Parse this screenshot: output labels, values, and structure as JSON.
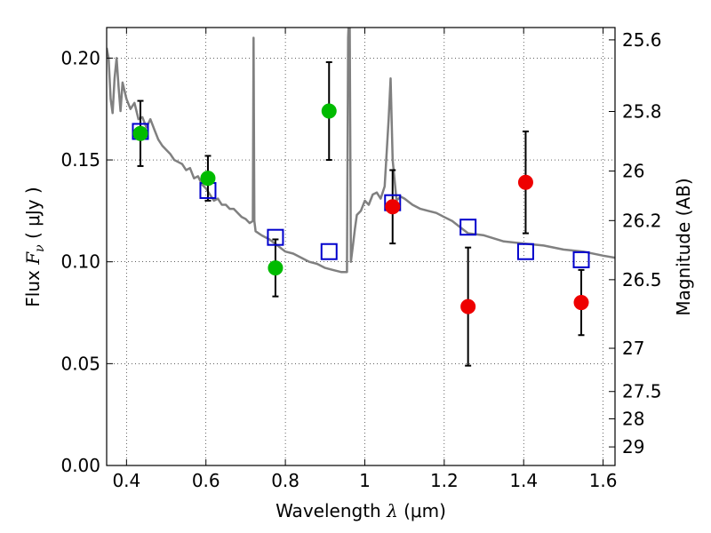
{
  "chart_data": {
    "type": "scatter",
    "title": "",
    "xlabel": "Wavelength  λ (μm)",
    "ylabel": "Flux  F_ν  ( μJy )",
    "ylabel_parts": {
      "pre": "Flux  ",
      "var": "F",
      "sub": "ν",
      "post": "  ( μJy )"
    },
    "xlabel_parts": {
      "pre": "Wavelength  ",
      "var": "λ",
      "post": " (μm)"
    },
    "y2label": "Magnitude (AB)",
    "xlim": [
      0.35,
      1.63
    ],
    "ylim": [
      0.0,
      0.215
    ],
    "grid": true,
    "legend": "none",
    "x_ticks": [
      0.4,
      0.6,
      0.8,
      1.0,
      1.2,
      1.4,
      1.6
    ],
    "x_tick_labels": [
      "0.4",
      "0.6",
      "0.8",
      "1",
      "1.2",
      "1.4",
      "1.6"
    ],
    "y_ticks": [
      0.0,
      0.05,
      0.1,
      0.15,
      0.2
    ],
    "y_tick_labels": [
      "0.00",
      "0.05",
      "0.10",
      "0.15",
      "0.20"
    ],
    "mag_ticks": [
      {
        "value": 25.6,
        "label": "25.6"
      },
      {
        "value": 25.8,
        "label": "25.8"
      },
      {
        "value": 26.0,
        "label": "26"
      },
      {
        "value": 26.2,
        "label": "26.2"
      },
      {
        "value": 26.5,
        "label": "26.5"
      },
      {
        "value": 27.0,
        "label": "27"
      },
      {
        "value": 27.5,
        "label": "27.5"
      },
      {
        "value": 28.0,
        "label": "28"
      },
      {
        "value": 29.0,
        "label": "29"
      }
    ],
    "series": [
      {
        "kind": "line",
        "color": "#808080",
        "x": [
          0.35,
          0.355,
          0.36,
          0.365,
          0.37,
          0.375,
          0.38,
          0.385,
          0.39,
          0.4,
          0.41,
          0.42,
          0.43,
          0.44,
          0.45,
          0.46,
          0.47,
          0.48,
          0.49,
          0.5,
          0.51,
          0.52,
          0.53,
          0.54,
          0.55,
          0.56,
          0.57,
          0.58,
          0.59,
          0.6,
          0.61,
          0.62,
          0.63,
          0.64,
          0.65,
          0.66,
          0.67,
          0.68,
          0.69,
          0.7,
          0.71,
          0.718,
          0.72,
          0.722,
          0.725,
          0.74,
          0.76,
          0.78,
          0.8,
          0.82,
          0.84,
          0.86,
          0.88,
          0.9,
          0.92,
          0.94,
          0.955,
          0.958,
          0.96,
          0.962,
          0.965,
          0.97,
          0.975,
          0.98,
          0.99,
          1.0,
          1.01,
          1.02,
          1.03,
          1.04,
          1.05,
          1.06,
          1.065,
          1.07,
          1.08,
          1.09,
          1.1,
          1.12,
          1.14,
          1.16,
          1.18,
          1.2,
          1.22,
          1.24,
          1.26,
          1.3,
          1.35,
          1.4,
          1.45,
          1.5,
          1.55,
          1.6,
          1.63
        ],
        "y": [
          0.205,
          0.2,
          0.18,
          0.173,
          0.19,
          0.2,
          0.186,
          0.174,
          0.188,
          0.18,
          0.175,
          0.178,
          0.17,
          0.171,
          0.166,
          0.17,
          0.165,
          0.16,
          0.157,
          0.155,
          0.153,
          0.15,
          0.149,
          0.148,
          0.145,
          0.146,
          0.141,
          0.142,
          0.138,
          0.136,
          0.133,
          0.13,
          0.131,
          0.128,
          0.128,
          0.126,
          0.126,
          0.124,
          0.122,
          0.121,
          0.119,
          0.12,
          0.21,
          0.12,
          0.115,
          0.113,
          0.111,
          0.108,
          0.105,
          0.104,
          0.102,
          0.1,
          0.099,
          0.097,
          0.096,
          0.095,
          0.095,
          0.21,
          0.22,
          0.215,
          0.1,
          0.108,
          0.116,
          0.123,
          0.125,
          0.13,
          0.128,
          0.133,
          0.134,
          0.131,
          0.137,
          0.17,
          0.19,
          0.15,
          0.13,
          0.132,
          0.131,
          0.128,
          0.126,
          0.125,
          0.124,
          0.122,
          0.12,
          0.117,
          0.114,
          0.113,
          0.11,
          0.109,
          0.108,
          0.106,
          0.105,
          0.103,
          0.102
        ]
      },
      {
        "kind": "open-squares",
        "color": "#0000cc",
        "x": [
          0.435,
          0.605,
          0.775,
          0.91,
          1.07,
          1.26,
          1.405,
          1.545
        ],
        "y": [
          0.164,
          0.135,
          0.112,
          0.105,
          0.129,
          0.117,
          0.105,
          0.101
        ]
      },
      {
        "kind": "points",
        "color": "#00bb00",
        "x": [
          0.435,
          0.605,
          0.775,
          0.91
        ],
        "y": [
          0.163,
          0.141,
          0.097,
          0.174
        ],
        "err": [
          0.016,
          0.011,
          0.014,
          0.024
        ]
      },
      {
        "kind": "points",
        "color": "#ee0000",
        "x": [
          1.07,
          1.26,
          1.405,
          1.545
        ],
        "y": [
          0.127,
          0.078,
          0.139,
          0.08
        ],
        "err": [
          0.018,
          0.029,
          0.025,
          0.016
        ]
      }
    ]
  }
}
